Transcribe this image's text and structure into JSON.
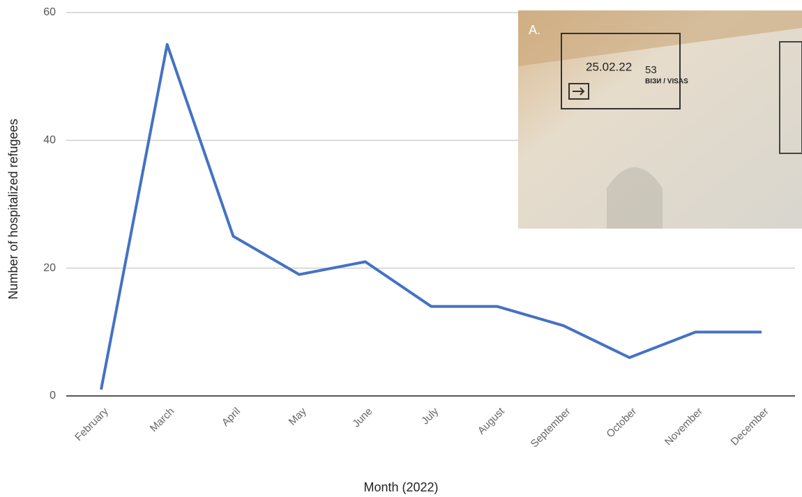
{
  "chart_data": {
    "type": "line",
    "x_label": "Month (2022)",
    "y_label": "Number of hospitalized refugees",
    "categories": [
      "February",
      "March",
      "April",
      "May",
      "June",
      "July",
      "August",
      "September",
      "October",
      "November",
      "December"
    ],
    "values": [
      1,
      55,
      25,
      19,
      21,
      14,
      14,
      11,
      6,
      10,
      10
    ],
    "color": "#4472c4",
    "ylim": [
      0,
      60
    ],
    "yticks": [
      0,
      20,
      40,
      60
    ],
    "grid": true,
    "inset": {
      "label": "A.",
      "stamp_date": "25.02.22",
      "stamp_number": "53",
      "stamp_text": "ВІЗИ / VISAS"
    }
  }
}
